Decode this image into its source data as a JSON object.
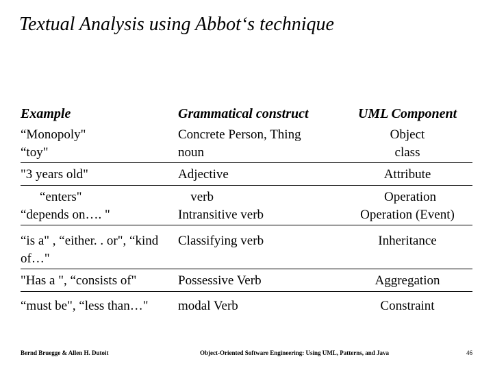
{
  "title": "Textual Analysis using Abbot‘s technique",
  "headers": {
    "c1": "Example",
    "c2": "Grammatical construct",
    "c3": "UML Component"
  },
  "rows": [
    {
      "c1": "“Monopoly\"",
      "c2": "Concrete Person, Thing",
      "c3": "Object"
    },
    {
      "c1": "“toy\"",
      "c2": "noun",
      "c3": "class"
    },
    {
      "c1": "\"3 years old\"",
      "c2": "Adjective",
      "c3": "Attribute"
    },
    {
      "c1": "“enters\"",
      "c2": "verb",
      "c3": "Operation",
      "indent": true
    },
    {
      "c1": "“depends on…. \"",
      "c2": "Intransitive verb",
      "c3": "Operation (Event)"
    },
    {
      "c1": "“is a\" , “either. . or\", “kind of…\"",
      "c2": "Classifying verb",
      "c3": "Inheritance"
    },
    {
      "c1": "\"Has a \", “consists of\"",
      "c2": "Possessive Verb",
      "c3": "Aggregation"
    },
    {
      "c1": "“must be\", “less than…\"",
      "c2": "modal Verb",
      "c3": "Constraint"
    }
  ],
  "footer": {
    "left": "Bernd Bruegge & Allen H. Dutoit",
    "center": "Object-Oriented Software Engineering: Using UML, Patterns, and Java",
    "page": "46"
  },
  "style": {
    "background_color": "#ffffff",
    "text_color": "#000000",
    "rule_color": "#000000",
    "title_fontsize": 28,
    "header_fontsize": 20,
    "body_fontsize": 19,
    "footer_fontsize": 9,
    "font_family": "Times New Roman"
  }
}
